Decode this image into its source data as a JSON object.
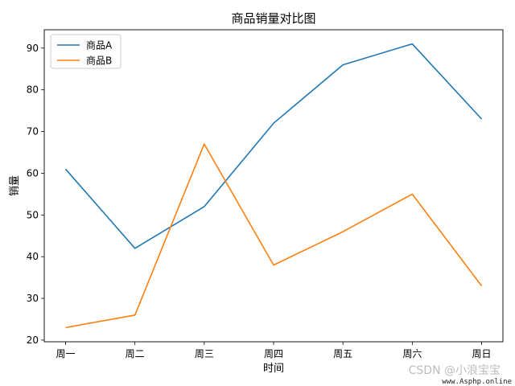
{
  "chart_data": {
    "type": "line",
    "title": "商品销量对比图",
    "xlabel": "时间",
    "ylabel": "销量",
    "categories": [
      "周一",
      "周二",
      "周三",
      "周四",
      "周五",
      "周六",
      "周日"
    ],
    "series": [
      {
        "name": "商品A",
        "values": [
          61,
          42,
          52,
          72,
          86,
          91,
          73
        ],
        "color": "#1f77b4"
      },
      {
        "name": "商品B",
        "values": [
          23,
          26,
          67,
          38,
          46,
          55,
          33
        ],
        "color": "#ff7f0e"
      }
    ],
    "ylim": [
      19.6,
      94.4
    ],
    "yticks": [
      20,
      30,
      40,
      50,
      60,
      70,
      80,
      90
    ],
    "grid": false,
    "legend": "top-left"
  },
  "watermark": {
    "text": "CSDN @小浪宝宝",
    "site": "www.Asphp.online"
  }
}
